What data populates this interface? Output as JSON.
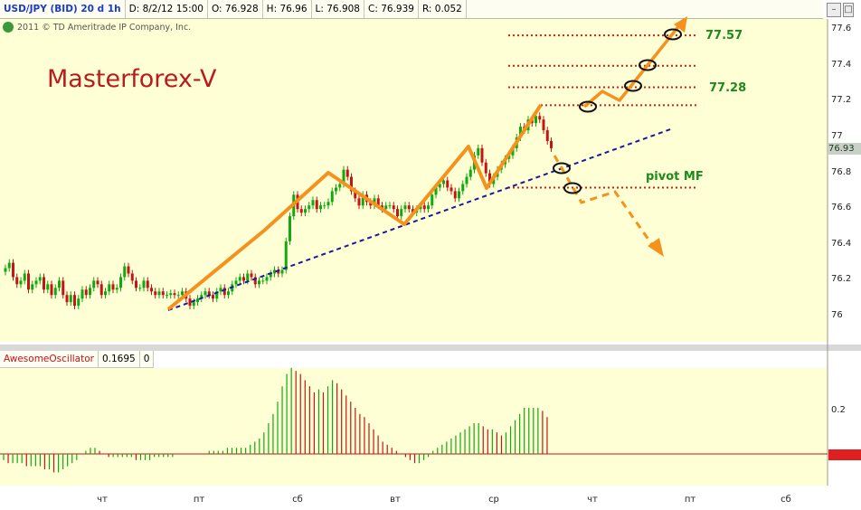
{
  "header": {
    "symbol": "USD/JPY (BID) 20 d 1h",
    "date": "D: 8/2/12 15:00",
    "open": "O: 76.928",
    "high": "H: 76.96",
    "low": "L: 76.908",
    "close": "C: 76.939",
    "range": "R: 0.052"
  },
  "window_buttons": [
    "–",
    "□",
    "×"
  ],
  "copyright": "2011 © TD Ameritrade IP Company, Inc.",
  "watermark": "Masterforex-V",
  "annotations": {
    "level_upper": "77.57",
    "level_mid": "77.28",
    "pivot": "pivot MF"
  },
  "oscillator_panel": {
    "name": "AwesomeOscillator",
    "value": "0.1695",
    "zero": "0",
    "tick": "0.2"
  },
  "last_price_label": "76.93",
  "colors": {
    "plot_bg": "#ffffd6",
    "bull": "#11a811",
    "bear": "#c31515",
    "orange": "#f5921e",
    "trend": "#1a1a9a",
    "level": "#d21b1b"
  },
  "chart_data": [
    {
      "type": "line",
      "title": "USD/JPY (BID) 20 d 1h",
      "ylim": [
        75.8,
        77.7
      ],
      "yticks": [
        76,
        76.2,
        76.4,
        76.6,
        76.8,
        77,
        77.2,
        77.4,
        77.6
      ],
      "x_day_labels": [
        "чт",
        "пт",
        "сб",
        "вт",
        "ср",
        "чт",
        "пт",
        "сб"
      ],
      "series": [
        {
          "values": [
            76.27,
            76.3,
            76.22,
            76.18,
            76.2,
            76.24,
            76.15,
            76.18,
            76.2,
            76.22,
            76.15,
            76.18,
            76.12,
            76.16,
            76.2,
            76.12,
            76.08,
            76.12,
            76.06,
            76.1,
            76.15,
            76.12,
            76.16,
            76.2,
            76.18,
            76.12,
            76.14,
            76.18,
            76.15,
            76.16,
            76.22,
            76.28,
            76.24,
            76.2,
            76.16,
            76.16,
            76.2,
            76.16,
            76.14,
            76.12,
            76.14,
            76.12,
            76.12,
            76.13,
            76.12,
            76.12,
            76.14,
            76.1,
            76.06,
            76.08,
            76.1,
            76.12,
            76.14,
            76.12,
            76.1,
            76.14,
            76.16,
            76.12,
            76.14,
            76.18,
            76.2,
            76.22,
            76.2,
            76.24,
            76.22,
            76.18,
            76.2,
            76.2,
            76.22,
            76.24,
            76.26,
            76.24,
            76.26,
            76.42,
            76.56,
            76.68,
            76.6,
            76.58,
            76.6,
            76.62,
            76.65,
            76.6,
            76.62,
            76.62,
            76.64,
            76.7,
            76.72,
            76.74,
            76.82,
            76.78,
            76.7,
            76.66,
            76.62,
            76.68,
            76.64,
            76.62,
            76.66,
            76.62,
            76.6,
            76.62,
            76.62,
            76.6,
            76.56,
            76.6,
            76.62,
            76.6,
            76.58,
            76.6,
            76.62,
            76.6,
            76.62,
            76.68,
            76.72,
            76.74,
            76.76,
            76.72,
            76.7,
            76.66,
            76.7,
            76.74,
            76.78,
            76.82,
            76.9,
            76.94,
            76.86,
            76.8,
            76.74,
            76.78,
            76.82,
            76.85,
            76.88,
            76.9,
            76.94,
            77,
            77.06,
            77.04,
            77.1,
            77.08,
            77.12,
            77.1,
            77.04,
            76.98,
            76.94
          ]
        }
      ]
    },
    {
      "type": "bar",
      "title": "AwesomeOscillator",
      "ylim": [
        -0.08,
        0.32
      ],
      "yticks": [
        0.2
      ],
      "series": [
        {
          "name": "AwesomeOscillator",
          "values": [
            -0.02,
            -0.03,
            -0.03,
            -0.03,
            -0.03,
            -0.04,
            -0.04,
            -0.04,
            -0.04,
            -0.05,
            -0.05,
            -0.06,
            -0.06,
            -0.05,
            -0.04,
            -0.03,
            -0.02,
            0.0,
            0.01,
            0.02,
            0.02,
            0.01,
            0.0,
            -0.01,
            -0.01,
            -0.01,
            -0.01,
            -0.01,
            -0.01,
            -0.02,
            -0.02,
            -0.02,
            -0.02,
            -0.01,
            -0.01,
            -0.01,
            -0.01,
            -0.01,
            0.0,
            0.0,
            0.0,
            0.0,
            0.0,
            0.0,
            0.0,
            0.01,
            0.01,
            0.01,
            0.01,
            0.02,
            0.02,
            0.02,
            0.02,
            0.02,
            0.03,
            0.04,
            0.05,
            0.07,
            0.1,
            0.13,
            0.17,
            0.22,
            0.26,
            0.28,
            0.27,
            0.26,
            0.24,
            0.22,
            0.2,
            0.21,
            0.2,
            0.22,
            0.24,
            0.23,
            0.21,
            0.19,
            0.17,
            0.15,
            0.13,
            0.12,
            0.1,
            0.08,
            0.06,
            0.04,
            0.03,
            0.02,
            0.01,
            0.0,
            -0.01,
            -0.02,
            -0.03,
            -0.03,
            -0.02,
            -0.01,
            0.01,
            0.02,
            0.03,
            0.04,
            0.05,
            0.06,
            0.07,
            0.08,
            0.09,
            0.1,
            0.1,
            0.09,
            0.08,
            0.08,
            0.07,
            0.06,
            0.07,
            0.09,
            0.11,
            0.13,
            0.15,
            0.15,
            0.15,
            0.15,
            0.14,
            0.12
          ]
        }
      ]
    }
  ]
}
